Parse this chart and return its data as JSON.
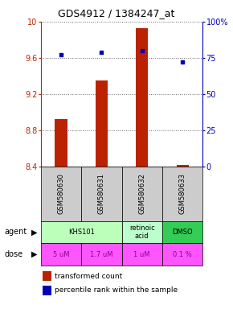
{
  "title": "GDS4912 / 1384247_at",
  "samples": [
    "GSM580630",
    "GSM580631",
    "GSM580632",
    "GSM580633"
  ],
  "bar_values": [
    8.93,
    9.35,
    9.93,
    8.42
  ],
  "bar_bottom": 8.4,
  "percentile_values": [
    77,
    79,
    80,
    72
  ],
  "ylim_left": [
    8.4,
    10.0
  ],
  "ylim_right": [
    0,
    100
  ],
  "yticks_left": [
    8.4,
    8.8,
    9.2,
    9.6,
    10.0
  ],
  "yticks_right": [
    0,
    25,
    50,
    75,
    100
  ],
  "ytick_labels_left": [
    "8.4",
    "8.8",
    "9.2",
    "9.6",
    "10"
  ],
  "ytick_labels_right": [
    "0",
    "25",
    "50",
    "75",
    "100%"
  ],
  "bar_color": "#bb2200",
  "dot_color": "#0000bb",
  "agent_data": [
    [
      0,
      2,
      "KHS101",
      "#bbffbb"
    ],
    [
      2,
      3,
      "retinoic\nacid",
      "#bbffcc"
    ],
    [
      3,
      4,
      "DMSO",
      "#33cc55"
    ]
  ],
  "dose_labels": [
    "5 uM",
    "1.7 uM",
    "1 uM",
    "0.1 %"
  ],
  "dose_bg_color": "#ff55ff",
  "dose_text_color": "#880088",
  "sample_bg_color": "#cccccc",
  "grid_color": "#666666",
  "bar_width": 0.3
}
